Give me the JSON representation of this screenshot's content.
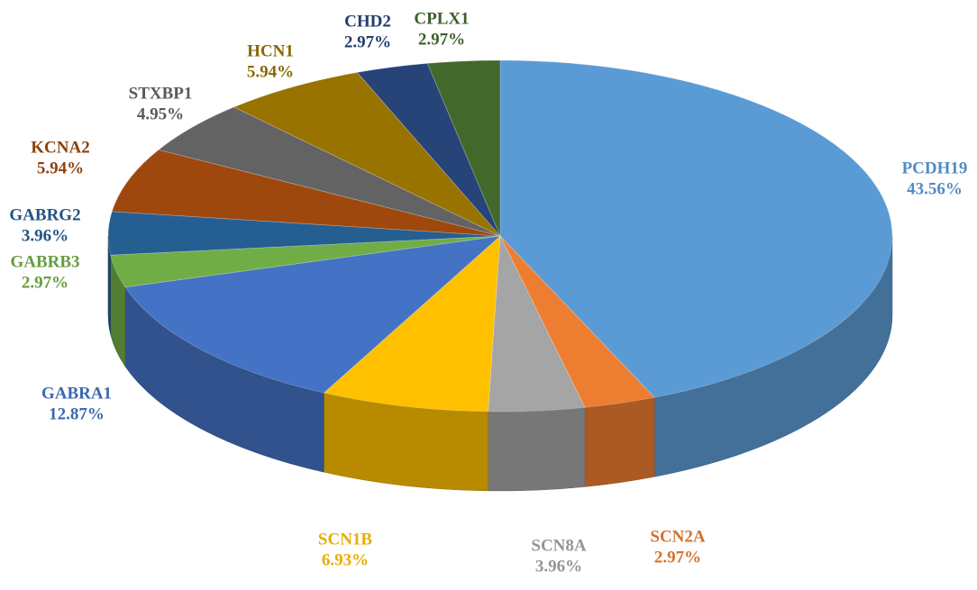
{
  "chart_data": {
    "type": "pie",
    "categories": [
      "PCDH19",
      "SCN2A",
      "SCN8A",
      "SCN1B",
      "GABRA1",
      "GABRB3",
      "GABRG2",
      "KCNA2",
      "STXBP1",
      "HCN1",
      "CHD2",
      "CPLX1"
    ],
    "values": [
      43.56,
      2.97,
      3.96,
      6.93,
      12.87,
      2.97,
      3.96,
      5.94,
      4.95,
      5.94,
      2.97,
      2.97
    ],
    "value_labels": [
      "43.56%",
      "2.97%",
      "3.96%",
      "6.93%",
      "12.87%",
      "2.97%",
      "3.96%",
      "5.94%",
      "4.95%",
      "5.94%",
      "2.97%",
      "2.97%"
    ],
    "colors": [
      "#5b9bd5",
      "#ed7d31",
      "#a5a5a5",
      "#ffc000",
      "#4472c4",
      "#70ad47",
      "#255e91",
      "#9e480e",
      "#636363",
      "#997300",
      "#264478",
      "#43682b"
    ]
  }
}
